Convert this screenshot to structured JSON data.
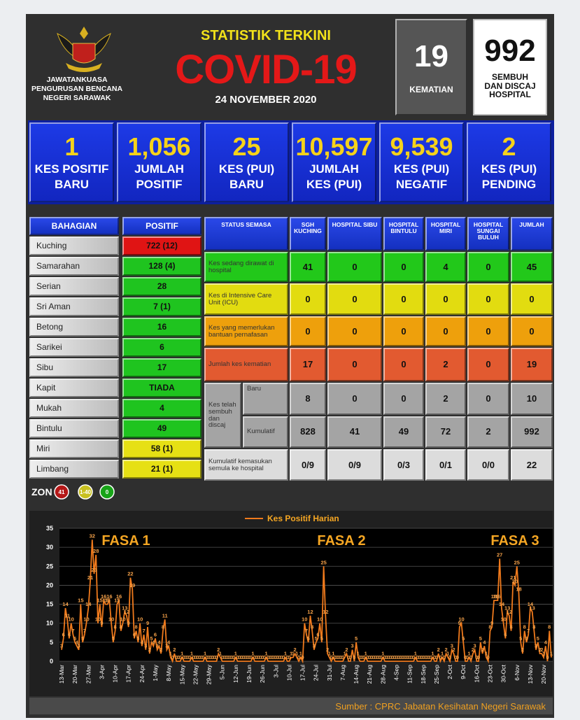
{
  "header": {
    "org": [
      "JAWATANKUASA",
      "PENGURUSAN BENCANA",
      "NEGERI SARAWAK"
    ],
    "kicker": "STATISTIK TERKINI",
    "title": "COVID-19",
    "date": "24 NOVEMBER 2020"
  },
  "deaths": {
    "value": "19",
    "label": "KEMATIAN"
  },
  "discharged": {
    "value": "992",
    "label": [
      "SEMBUH",
      "DAN DISCAJ",
      "HOSPITAL"
    ]
  },
  "stats": [
    {
      "value": "1",
      "label": [
        "KES POSITIF",
        "BARU"
      ]
    },
    {
      "value": "1,056",
      "label": [
        "JUMLAH",
        "POSITIF"
      ]
    },
    {
      "value": "25",
      "label": [
        "KES (PUI)",
        "BARU"
      ]
    },
    {
      "value": "10,597",
      "label": [
        "JUMLAH",
        "KES (PUI)"
      ]
    },
    {
      "value": "9,539",
      "label": [
        "KES (PUI)",
        "NEGATIF"
      ]
    },
    {
      "value": "2",
      "label": [
        "KES (PUI)",
        "PENDING"
      ]
    }
  ],
  "districts": {
    "header": [
      "BAHAGIAN",
      "POSITIF"
    ],
    "rows": [
      {
        "name": "Kuching",
        "value": "722 (12)",
        "color": "#e01414"
      },
      {
        "name": "Samarahan",
        "value": "128 (4)",
        "color": "#1fc41f"
      },
      {
        "name": "Serian",
        "value": "28",
        "color": "#1fc41f"
      },
      {
        "name": "Sri Aman",
        "value": "7 (1)",
        "color": "#1fc41f"
      },
      {
        "name": "Betong",
        "value": "16",
        "color": "#1fc41f"
      },
      {
        "name": "Sarikei",
        "value": "6",
        "color": "#1fc41f"
      },
      {
        "name": "Sibu",
        "value": "17",
        "color": "#1fc41f"
      },
      {
        "name": "Kapit",
        "value": "TIADA",
        "color": "#1fc41f"
      },
      {
        "name": "Mukah",
        "value": "4",
        "color": "#1fc41f"
      },
      {
        "name": "Bintulu",
        "value": "49",
        "color": "#1fc41f"
      },
      {
        "name": "Miri",
        "value": "58 (1)",
        "color": "#e6e014"
      },
      {
        "name": "Limbang",
        "value": "21 (1)",
        "color": "#e6e014"
      }
    ]
  },
  "status": {
    "header": [
      "STATUS SEMASA",
      "SGH KUCHING",
      "HOSPITAL SIBU",
      "HOSPITAL BINTULU",
      "HOSPITAL MIRI",
      "HOSPITAL SUNGAI BULUH",
      "JUMLAH"
    ],
    "rows": [
      {
        "label": "Kes sedang dirawat di hospital",
        "values": [
          "41",
          "0",
          "0",
          "4",
          "0",
          "45"
        ],
        "color": "#22c81a"
      },
      {
        "label": "Kes di Intensive Care Unit (ICU)",
        "values": [
          "0",
          "0",
          "0",
          "0",
          "0",
          "0"
        ],
        "color": "#e2dc10"
      },
      {
        "label": "Kes yang memerlukan bantuan pernafasan",
        "values": [
          "0",
          "0",
          "0",
          "0",
          "0",
          "0"
        ],
        "color": "#eea00c"
      },
      {
        "label": "Jumlah kes kematian",
        "values": [
          "17",
          "0",
          "0",
          "2",
          "0",
          "19"
        ],
        "color": "#e25a30"
      },
      {
        "label": "Kes telah sembuh dan discaj",
        "color": "#a4a4a4",
        "rows": [
          {
            "label": "Baru",
            "values": [
              "8",
              "0",
              "0",
              "2",
              "0",
              "10"
            ]
          },
          {
            "label": "Kumulatif",
            "values": [
              "828",
              "41",
              "49",
              "72",
              "2",
              "992"
            ]
          }
        ]
      },
      {
        "label": "Kumulatif kemasukan semula ke hospital",
        "values": [
          "0/9",
          "0/9",
          "0/3",
          "0/1",
          "0/0",
          "22"
        ],
        "color": "#dcdcdc"
      }
    ]
  },
  "zone": {
    "label": "ZON",
    "badges": [
      {
        "text": "41",
        "color": "#b41818"
      },
      {
        "text": "1-40",
        "color": "#c8c020"
      },
      {
        "text": "0",
        "color": "#18a418"
      }
    ]
  },
  "chart_data": {
    "type": "line",
    "source": "Sumber : CPRC Jabatan Kesihatan Negeri Sarawak",
    "annotations": [
      "FASA 1",
      "FASA 2",
      "FASA 3"
    ],
    "ylim": [
      0,
      35
    ],
    "yticks": [
      0,
      5,
      10,
      15,
      20,
      25,
      30,
      35
    ],
    "grid": true,
    "categories": [
      "13-Mar",
      null,
      null,
      null,
      null,
      null,
      null,
      "20-Mar",
      null,
      null,
      null,
      null,
      null,
      null,
      "27-Mar",
      null,
      null,
      null,
      null,
      null,
      null,
      "3-Apr",
      null,
      null,
      null,
      null,
      null,
      null,
      "10-Apr",
      null,
      null,
      null,
      null,
      null,
      null,
      "17-Apr",
      null,
      null,
      null,
      null,
      null,
      null,
      "24-Apr",
      null,
      null,
      null,
      null,
      null,
      null,
      "1-May",
      null,
      null,
      null,
      null,
      null,
      null,
      "8-May",
      null,
      null,
      null,
      null,
      null,
      null,
      "15-May",
      null,
      null,
      null,
      null,
      null,
      null,
      "22-May",
      null,
      null,
      null,
      null,
      null,
      null,
      "29-May",
      null,
      null,
      null,
      null,
      null,
      null,
      "5-Jun",
      null,
      null,
      null,
      null,
      null,
      null,
      "12-Jun",
      null,
      null,
      null,
      null,
      null,
      null,
      "19-Jun",
      null,
      null,
      null,
      null,
      null,
      null,
      "26-Jun",
      null,
      null,
      null,
      null,
      null,
      null,
      "3-Jul",
      null,
      null,
      null,
      null,
      null,
      null,
      "10-Jul",
      null,
      null,
      null,
      null,
      null,
      null,
      "17-Jul",
      null,
      null,
      null,
      null,
      null,
      null,
      "24-Jul",
      null,
      null,
      null,
      null,
      null,
      null,
      "31-Jul",
      null,
      null,
      null,
      null,
      null,
      null,
      "7-Aug",
      null,
      null,
      null,
      null,
      null,
      null,
      "14-Aug",
      null,
      null,
      null,
      null,
      null,
      null,
      "21-Aug",
      null,
      null,
      null,
      null,
      null,
      null,
      "28-Aug",
      null,
      null,
      null,
      null,
      null,
      null,
      "4-Sep",
      null,
      null,
      null,
      null,
      null,
      null,
      "11-Sep",
      null,
      null,
      null,
      null,
      null,
      null,
      "18-Sep",
      null,
      null,
      null,
      null,
      null,
      null,
      "25-Sep",
      null,
      null,
      null,
      null,
      null,
      null,
      "2-Oct",
      null,
      null,
      null,
      null,
      null,
      null,
      "9-Oct",
      null,
      null,
      null,
      null,
      null,
      null,
      "16-Oct",
      null,
      null,
      null,
      null,
      null,
      null,
      "23-Oct",
      null,
      null,
      null,
      null,
      null,
      null,
      "30-Oct",
      null,
      null,
      null,
      null,
      null,
      null,
      "6-Nov",
      null,
      null,
      null,
      null,
      null,
      null,
      "13-Nov",
      null,
      null,
      null,
      null,
      null,
      null,
      "20-Nov",
      null,
      null,
      null,
      null
    ],
    "series": [
      {
        "name": "Kes Positif Harian",
        "color": "#f07a1c",
        "values": [
          3,
          6,
          14,
          11,
          6,
          10,
          7,
          5,
          4,
          3,
          15,
          5,
          7,
          10,
          14,
          21,
          32,
          23,
          28,
          10,
          15,
          9,
          16,
          15,
          15,
          16,
          10,
          5,
          8,
          15,
          16,
          8,
          10,
          13,
          12,
          9,
          22,
          19,
          6,
          8,
          5,
          10,
          4,
          7,
          3,
          9,
          2,
          5,
          4,
          6,
          3,
          4,
          2,
          8,
          11,
          3,
          4,
          1,
          0,
          2,
          0,
          0,
          0,
          1,
          0,
          0,
          0,
          0,
          1,
          0,
          0,
          0,
          0,
          0,
          0,
          1,
          0,
          0,
          0,
          0,
          0,
          0,
          2,
          1,
          0,
          0,
          0,
          0,
          0,
          0,
          0,
          1,
          0,
          0,
          0,
          0,
          0,
          0,
          0,
          0,
          1,
          0,
          0,
          0,
          0,
          0,
          0,
          1,
          0,
          0,
          0,
          0,
          0,
          0,
          0,
          0,
          0,
          1,
          0,
          0,
          1,
          1,
          2,
          1,
          0,
          1,
          0,
          10,
          7,
          5,
          12,
          8,
          3,
          5,
          6,
          10,
          5,
          25,
          12,
          2,
          1,
          0,
          1,
          0,
          0,
          0,
          0,
          0,
          1,
          2,
          0,
          0,
          3,
          0,
          5,
          1,
          0,
          0,
          0,
          1,
          0,
          0,
          0,
          0,
          0,
          0,
          0,
          0,
          1,
          0,
          0,
          0,
          0,
          0,
          0,
          0,
          0,
          0,
          0,
          0,
          0,
          0,
          0,
          0,
          0,
          1,
          0,
          0,
          0,
          0,
          0,
          0,
          0,
          0,
          1,
          0,
          0,
          2,
          0,
          1,
          0,
          2,
          1,
          0,
          3,
          2,
          0,
          0,
          9,
          10,
          5,
          0,
          0,
          1,
          0,
          2,
          3,
          0,
          0,
          5,
          2,
          4,
          1,
          0,
          8,
          9,
          16,
          16,
          16,
          27,
          14,
          10,
          6,
          13,
          12,
          8,
          21,
          20,
          25,
          18,
          5,
          2,
          8,
          5,
          7,
          14,
          13,
          8,
          3,
          5,
          2,
          2,
          1,
          4,
          0,
          8,
          1
        ]
      }
    ]
  }
}
